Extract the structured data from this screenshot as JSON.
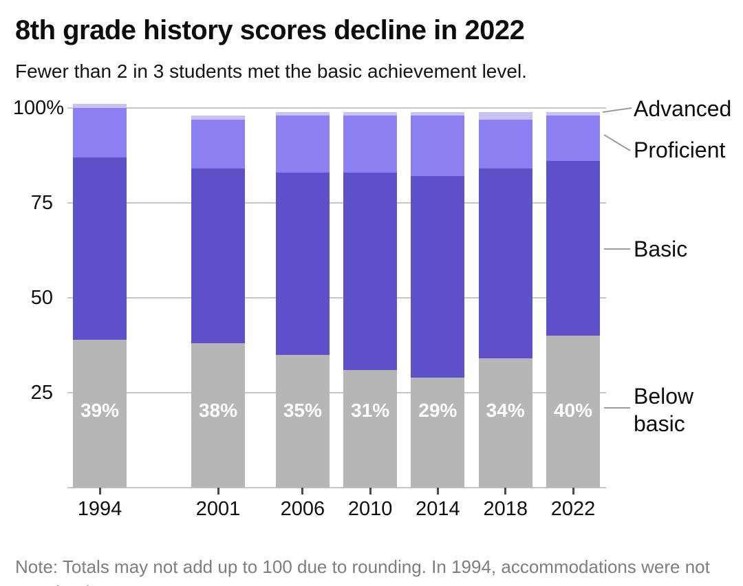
{
  "title": "8th grade history scores decline in 2022",
  "subtitle": "Fewer than 2 in 3 students met the basic achievement level.",
  "note": {
    "line1": "Note: Totals may not add up to 100 due to rounding. In 1994, accommodations were not",
    "line2": "permitted."
  },
  "colors": {
    "below_basic": "#b6b5b7",
    "basic": "#5d50c8",
    "proficient": "#8b7ff2",
    "advanced": "#c7c3f0",
    "gridline": "#c6c6c6",
    "leader_line": "#9b9b9b",
    "axis_tick": "#4a4a4a",
    "bar_label_text": "#ffffff",
    "note_text": "#7e7e7e"
  },
  "chart_data": {
    "type": "bar",
    "stacked": true,
    "x_scale": "time-proportional",
    "categories": [
      "1994",
      "2001",
      "2006",
      "2010",
      "2014",
      "2018",
      "2022"
    ],
    "series": [
      {
        "name": "Below basic",
        "color": "#b6b5b7",
        "values": [
          39,
          38,
          35,
          31,
          29,
          34,
          40
        ]
      },
      {
        "name": "Basic",
        "color": "#5d50c8",
        "values": [
          48,
          46,
          48,
          52,
          53,
          50,
          46
        ]
      },
      {
        "name": "Proficient",
        "color": "#8b7ff2",
        "values": [
          13,
          13,
          15,
          15,
          16,
          13,
          12
        ]
      },
      {
        "name": "Advanced",
        "color": "#c7c3f0",
        "values": [
          1,
          1,
          1,
          1,
          1,
          2,
          1
        ]
      }
    ],
    "bar_labels": [
      "39%",
      "38%",
      "35%",
      "31%",
      "29%",
      "34%",
      "40%"
    ],
    "y_axis": {
      "range": [
        0,
        100
      ],
      "ticks": [
        {
          "label": "100%",
          "value": 100
        },
        {
          "label": "75",
          "value": 75
        },
        {
          "label": "50",
          "value": 50
        },
        {
          "label": "25",
          "value": 25
        },
        {
          "label": "",
          "value": 0
        }
      ]
    },
    "legend": {
      "position": "right",
      "items": [
        "Advanced",
        "Proficient",
        "Basic",
        "Below basic"
      ]
    }
  }
}
